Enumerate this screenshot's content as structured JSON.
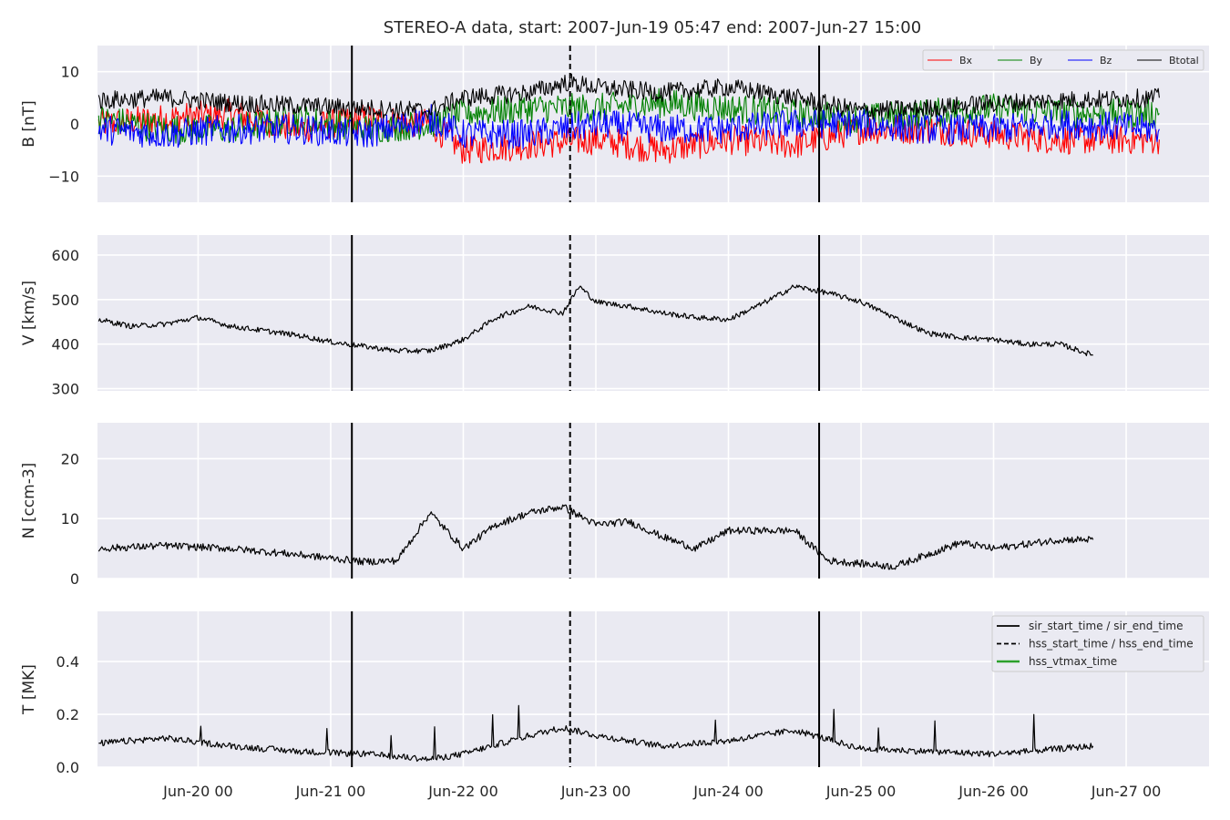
{
  "chart_data": {
    "type": "line",
    "title": "STEREO-A data, start: 2007-Jun-19 05:47  end: 2007-Jun-27 15:00",
    "x_range": [
      "2007-06-19 05:47",
      "2007-06-27 15:00"
    ],
    "x_ticks": [
      "Jun-20 00",
      "Jun-21 00",
      "Jun-22 00",
      "Jun-23 00",
      "Jun-24 00",
      "Jun-25 00",
      "Jun-26 00",
      "Jun-27 00"
    ],
    "grid": true,
    "event_lines": [
      {
        "name": "sir_start_time / sir_end_time",
        "style": "solid",
        "times": [
          "2007-06-21 03:50",
          "2007-06-24 16:25"
        ]
      },
      {
        "name": "hss_start_time / hss_end_time",
        "style": "dashed",
        "times": [
          "2007-06-22 19:20"
        ]
      },
      {
        "name": "hss_vtmax_time",
        "style": "solid-green",
        "times": []
      }
    ],
    "panels": [
      {
        "key": "B",
        "ylabel": "B [nT]",
        "ylim": [
          -15,
          15
        ],
        "yticks": [
          "10",
          "0",
          "−10"
        ],
        "ytick_values": [
          10,
          0,
          -10
        ],
        "legend": "top-right",
        "series": [
          {
            "name": "Bx",
            "color": "#ff0000",
            "points": [
              [
                "2007-06-19 06:00",
                0
              ],
              [
                "2007-06-19 18:00",
                1
              ],
              [
                "2007-06-20 06:00",
                2
              ],
              [
                "2007-06-20 18:00",
                -1
              ],
              [
                "2007-06-21 06:00",
                1
              ],
              [
                "2007-06-21 18:00",
                0
              ],
              [
                "2007-06-22 00:00",
                -5
              ],
              [
                "2007-06-22 12:00",
                -4
              ],
              [
                "2007-06-23 00:00",
                -3
              ],
              [
                "2007-06-23 12:00",
                -5
              ],
              [
                "2007-06-24 00:00",
                -3
              ],
              [
                "2007-06-24 12:00",
                -4
              ],
              [
                "2007-06-25 00:00",
                -1
              ],
              [
                "2007-06-25 12:00",
                -1
              ],
              [
                "2007-06-26 00:00",
                -2
              ],
              [
                "2007-06-26 12:00",
                -3
              ],
              [
                "2007-06-27 06:00",
                -3
              ]
            ]
          },
          {
            "name": "By",
            "color": "#008000",
            "points": [
              [
                "2007-06-19 06:00",
                1
              ],
              [
                "2007-06-19 18:00",
                -1
              ],
              [
                "2007-06-20 06:00",
                -1
              ],
              [
                "2007-06-20 18:00",
                1
              ],
              [
                "2007-06-21 06:00",
                -1
              ],
              [
                "2007-06-21 18:00",
                0
              ],
              [
                "2007-06-22 00:00",
                2
              ],
              [
                "2007-06-22 12:00",
                3
              ],
              [
                "2007-06-23 00:00",
                3
              ],
              [
                "2007-06-23 12:00",
                4
              ],
              [
                "2007-06-24 00:00",
                3
              ],
              [
                "2007-06-24 12:00",
                2
              ],
              [
                "2007-06-25 00:00",
                1
              ],
              [
                "2007-06-25 12:00",
                2
              ],
              [
                "2007-06-26 00:00",
                3
              ],
              [
                "2007-06-26 12:00",
                2
              ],
              [
                "2007-06-27 06:00",
                2
              ]
            ]
          },
          {
            "name": "Bz",
            "color": "#0000ff",
            "points": [
              [
                "2007-06-19 06:00",
                -1
              ],
              [
                "2007-06-19 18:00",
                -2
              ],
              [
                "2007-06-20 06:00",
                -1
              ],
              [
                "2007-06-20 18:00",
                -1
              ],
              [
                "2007-06-21 06:00",
                -2
              ],
              [
                "2007-06-21 18:00",
                1
              ],
              [
                "2007-06-22 00:00",
                -2
              ],
              [
                "2007-06-22 12:00",
                -2
              ],
              [
                "2007-06-23 00:00",
                0
              ],
              [
                "2007-06-23 12:00",
                -1
              ],
              [
                "2007-06-24 00:00",
                -1
              ],
              [
                "2007-06-24 12:00",
                0
              ],
              [
                "2007-06-25 00:00",
                0
              ],
              [
                "2007-06-25 12:00",
                -1
              ],
              [
                "2007-06-26 00:00",
                -1
              ],
              [
                "2007-06-26 12:00",
                0
              ],
              [
                "2007-06-27 06:00",
                -1
              ]
            ]
          },
          {
            "name": "Btotal",
            "color": "#000000",
            "points": [
              [
                "2007-06-19 06:00",
                4.5
              ],
              [
                "2007-06-19 18:00",
                5
              ],
              [
                "2007-06-20 06:00",
                4
              ],
              [
                "2007-06-20 18:00",
                3.5
              ],
              [
                "2007-06-21 06:00",
                3
              ],
              [
                "2007-06-21 18:00",
                2.5
              ],
              [
                "2007-06-22 00:00",
                5
              ],
              [
                "2007-06-22 12:00",
                6
              ],
              [
                "2007-06-22 19:00",
                8
              ],
              [
                "2007-06-23 00:00",
                7
              ],
              [
                "2007-06-23 12:00",
                6
              ],
              [
                "2007-06-24 00:00",
                7
              ],
              [
                "2007-06-24 12:00",
                5
              ],
              [
                "2007-06-25 00:00",
                2.5
              ],
              [
                "2007-06-25 12:00",
                3
              ],
              [
                "2007-06-26 00:00",
                4
              ],
              [
                "2007-06-26 12:00",
                4.5
              ],
              [
                "2007-06-27 06:00",
                5
              ]
            ]
          }
        ]
      },
      {
        "key": "V",
        "ylabel": "V [km/s]",
        "ylim": [
          295,
          645
        ],
        "yticks": [
          "600",
          "500",
          "400",
          "300"
        ],
        "ytick_values": [
          600,
          500,
          400,
          300
        ],
        "series": [
          {
            "name": "",
            "color": "#000000",
            "points": [
              [
                "2007-06-19 06:00",
                455
              ],
              [
                "2007-06-19 12:00",
                440
              ],
              [
                "2007-06-19 18:00",
                445
              ],
              [
                "2007-06-20 00:00",
                460
              ],
              [
                "2007-06-20 06:00",
                440
              ],
              [
                "2007-06-20 12:00",
                430
              ],
              [
                "2007-06-20 18:00",
                420
              ],
              [
                "2007-06-21 00:00",
                405
              ],
              [
                "2007-06-21 06:00",
                395
              ],
              [
                "2007-06-21 12:00",
                385
              ],
              [
                "2007-06-21 18:00",
                385
              ],
              [
                "2007-06-22 00:00",
                410
              ],
              [
                "2007-06-22 06:00",
                460
              ],
              [
                "2007-06-22 12:00",
                485
              ],
              [
                "2007-06-22 18:00",
                470
              ],
              [
                "2007-06-22 21:00",
                530
              ],
              [
                "2007-06-23 00:00",
                495
              ],
              [
                "2007-06-23 06:00",
                485
              ],
              [
                "2007-06-23 12:00",
                470
              ],
              [
                "2007-06-23 18:00",
                460
              ],
              [
                "2007-06-24 00:00",
                455
              ],
              [
                "2007-06-24 06:00",
                490
              ],
              [
                "2007-06-24 12:00",
                530
              ],
              [
                "2007-06-24 18:00",
                515
              ],
              [
                "2007-06-25 00:00",
                495
              ],
              [
                "2007-06-25 06:00",
                460
              ],
              [
                "2007-06-25 12:00",
                425
              ],
              [
                "2007-06-25 18:00",
                415
              ],
              [
                "2007-06-26 00:00",
                410
              ],
              [
                "2007-06-26 06:00",
                400
              ],
              [
                "2007-06-26 12:00",
                400
              ],
              [
                "2007-06-26 18:00",
                375
              ]
            ]
          }
        ]
      },
      {
        "key": "N",
        "ylabel": "N [ccm-3]",
        "ylim": [
          0,
          26
        ],
        "yticks": [
          "20",
          "10",
          "0"
        ],
        "ytick_values": [
          20,
          10,
          0
        ],
        "series": [
          {
            "name": "",
            "color": "#000000",
            "points": [
              [
                "2007-06-19 06:00",
                5
              ],
              [
                "2007-06-19 18:00",
                5.5
              ],
              [
                "2007-06-20 06:00",
                5
              ],
              [
                "2007-06-20 18:00",
                4
              ],
              [
                "2007-06-21 06:00",
                2.8
              ],
              [
                "2007-06-21 12:00",
                3
              ],
              [
                "2007-06-21 18:00",
                11
              ],
              [
                "2007-06-22 00:00",
                5
              ],
              [
                "2007-06-22 06:00",
                9
              ],
              [
                "2007-06-22 12:00",
                11
              ],
              [
                "2007-06-22 18:00",
                12
              ],
              [
                "2007-06-23 00:00",
                9
              ],
              [
                "2007-06-23 06:00",
                9.5
              ],
              [
                "2007-06-23 12:00",
                7
              ],
              [
                "2007-06-23 18:00",
                5
              ],
              [
                "2007-06-24 00:00",
                8
              ],
              [
                "2007-06-24 12:00",
                8
              ],
              [
                "2007-06-24 18:00",
                3
              ],
              [
                "2007-06-25 06:00",
                2
              ],
              [
                "2007-06-25 18:00",
                6
              ],
              [
                "2007-06-26 00:00",
                5
              ],
              [
                "2007-06-26 12:00",
                6.5
              ],
              [
                "2007-06-26 18:00",
                6.5
              ]
            ]
          }
        ]
      },
      {
        "key": "T",
        "ylabel": "T [MK]",
        "ylim": [
          0,
          0.59
        ],
        "yticks": [
          "0.4",
          "0.2",
          "0.0"
        ],
        "ytick_values": [
          0.4,
          0.2,
          0.0
        ],
        "legend": "top-right",
        "series": [
          {
            "name": "",
            "color": "#000000",
            "points": [
              [
                "2007-06-19 06:00",
                0.09
              ],
              [
                "2007-06-19 18:00",
                0.11
              ],
              [
                "2007-06-20 06:00",
                0.08
              ],
              [
                "2007-06-20 18:00",
                0.06
              ],
              [
                "2007-06-21 06:00",
                0.05
              ],
              [
                "2007-06-21 18:00",
                0.03
              ],
              [
                "2007-06-22 00:00",
                0.05
              ],
              [
                "2007-06-22 12:00",
                0.12
              ],
              [
                "2007-06-22 18:00",
                0.15
              ],
              [
                "2007-06-23 00:00",
                0.12
              ],
              [
                "2007-06-23 12:00",
                0.08
              ],
              [
                "2007-06-24 00:00",
                0.1
              ],
              [
                "2007-06-24 12:00",
                0.14
              ],
              [
                "2007-06-25 00:00",
                0.07
              ],
              [
                "2007-06-25 12:00",
                0.06
              ],
              [
                "2007-06-26 00:00",
                0.05
              ],
              [
                "2007-06-26 12:00",
                0.07
              ],
              [
                "2007-06-26 18:00",
                0.08
              ]
            ]
          }
        ]
      }
    ]
  }
}
